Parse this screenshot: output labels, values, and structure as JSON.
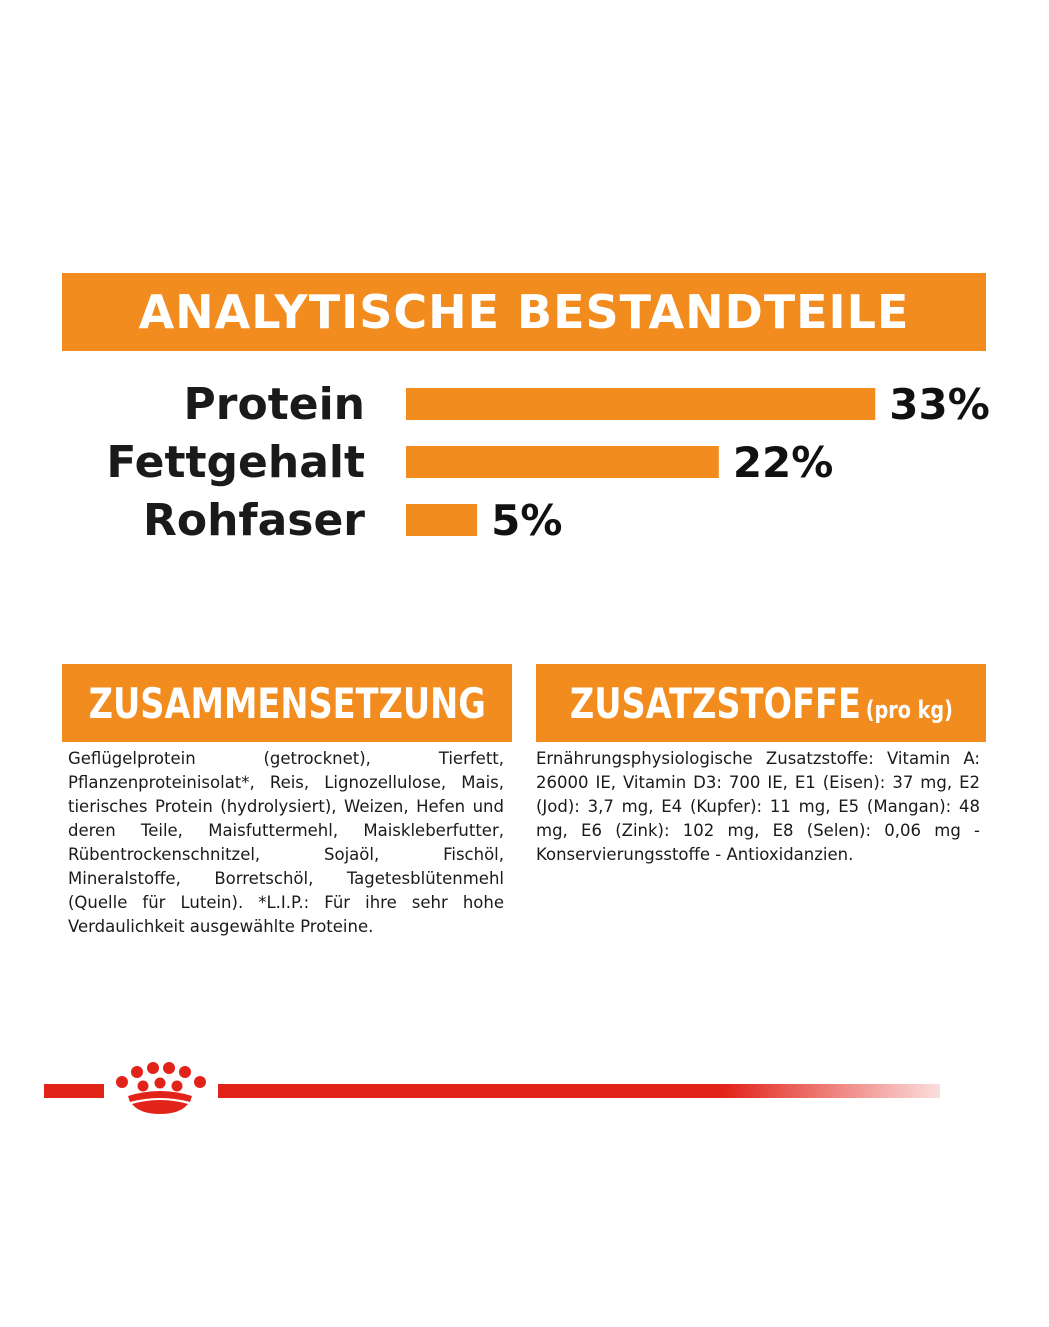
{
  "main_banner": {
    "title": "ANALYTISCHE BESTANDTEILE"
  },
  "chart_data": {
    "type": "bar",
    "orientation": "horizontal",
    "categories": [
      "Protein",
      "Fettgehalt",
      "Rohfaser"
    ],
    "values": [
      33,
      22,
      5
    ],
    "value_labels": [
      "33%",
      "22%",
      "5%"
    ],
    "unit": "%",
    "bar_color": "#f28c1e",
    "grid": false
  },
  "composition": {
    "title": "ZUSAMMENSETZUNG",
    "text": "Geflügelprotein (getrocknet), Tierfett, Pflanzenproteinisolat*, Reis, Lignozellulose, Mais, tierisches Protein (hydrolysiert), Weizen, Hefen und deren Teile, Maisfuttermehl, Maiskleberfutter, Rübentrockenschnitzel, Sojaöl, Fischöl, Mineralstoffe, Borretschöl, Tagetesblütenmehl (Quelle für Lutein). *L.I.P.: Für ihre sehr hohe Verdaulichkeit ausgewählte Proteine."
  },
  "additives": {
    "title": "ZUSATZSTOFFE",
    "unit": "(pro kg)",
    "text": "Ernährungsphysiologische Zusatzstoffe: Vitamin A: 26000 IE, Vitamin D3: 700 IE, E1 (Eisen): 37 mg, E2 (Jod): 3,7 mg, E4 (Kupfer): 11 mg, E5 (Mangan): 48 mg, E6 (Zink): 102 mg, E8 (Selen): 0,06 mg - Konservierungsstoffe - Antioxidanzien."
  },
  "footer": {
    "logo_icon": "crown-icon",
    "accent": "#e2231a"
  }
}
